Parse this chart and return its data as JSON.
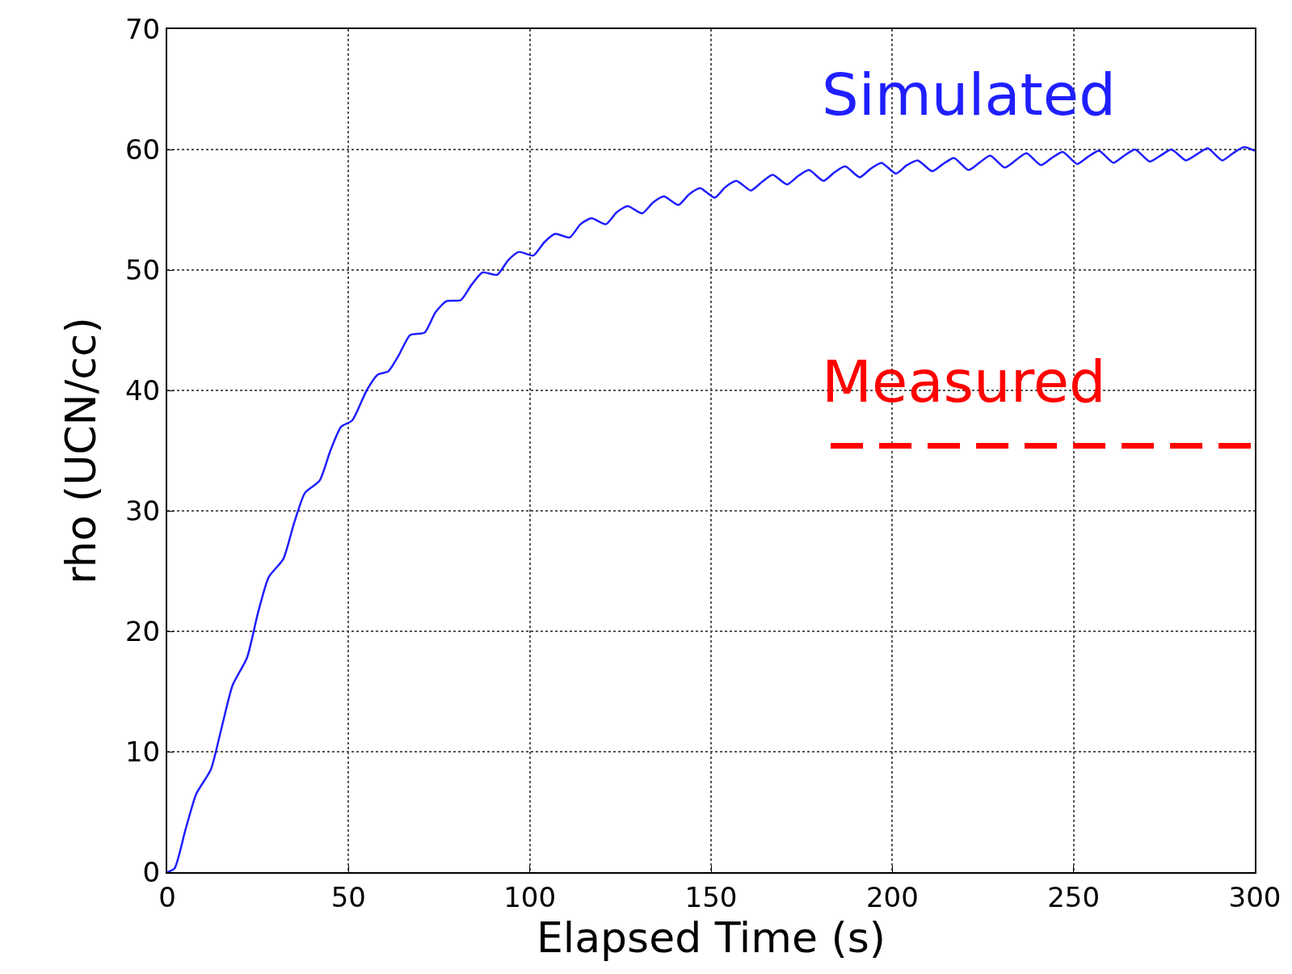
{
  "chart_data": {
    "type": "line",
    "xlabel": "Elapsed Time (s)",
    "ylabel": "rho (UCN/cc)",
    "xlim": [
      0,
      300
    ],
    "ylim": [
      0,
      70
    ],
    "xticks": [
      0,
      50,
      100,
      150,
      200,
      250,
      300
    ],
    "yticks": [
      0,
      10,
      20,
      30,
      40,
      50,
      60,
      70
    ],
    "grid": true,
    "legend": false,
    "series": [
      {
        "name": "Simulated",
        "color": "#1f1fff",
        "line_style": "solid",
        "x": [
          0,
          2,
          5,
          8,
          12,
          15,
          18,
          22,
          25,
          28,
          32,
          35,
          38,
          42,
          45,
          48,
          51,
          55,
          58,
          61,
          64,
          67,
          71,
          74,
          77,
          81,
          84,
          87,
          91,
          94,
          97,
          101,
          104,
          107,
          111,
          114,
          117,
          121,
          124,
          127,
          131,
          134,
          137,
          141,
          144,
          147,
          151,
          154,
          157,
          161,
          164,
          167,
          171,
          174,
          177,
          181,
          184,
          187,
          191,
          194,
          197,
          201,
          204,
          207,
          211,
          214,
          217,
          221,
          224,
          227,
          231,
          234,
          237,
          241,
          244,
          247,
          251,
          254,
          257,
          261,
          264,
          267,
          271,
          274,
          277,
          281,
          284,
          287,
          291,
          294,
          297,
          300
        ],
        "values": [
          0,
          0.3,
          3.5,
          6.5,
          8.5,
          12,
          15.5,
          17.8,
          21.5,
          24.5,
          26,
          29,
          31.5,
          32.5,
          35,
          37,
          37.5,
          40,
          41.3,
          41.6,
          43,
          44.6,
          44.8,
          46.5,
          47.4,
          47.5,
          48.8,
          49.8,
          49.6,
          50.8,
          51.5,
          51.2,
          52.3,
          53,
          52.7,
          53.8,
          54.3,
          53.8,
          54.8,
          55.3,
          54.7,
          55.6,
          56.1,
          55.4,
          56.3,
          56.8,
          56,
          56.9,
          57.4,
          56.6,
          57.3,
          57.9,
          57.1,
          57.8,
          58.3,
          57.4,
          58.1,
          58.6,
          57.7,
          58.4,
          58.9,
          58,
          58.7,
          59.1,
          58.2,
          58.8,
          59.3,
          58.3,
          58.9,
          59.5,
          58.5,
          59.1,
          59.7,
          58.7,
          59.3,
          59.8,
          58.8,
          59.4,
          59.9,
          58.9,
          59.5,
          60,
          59,
          59.5,
          60,
          59.1,
          59.6,
          60.1,
          59.1,
          59.7,
          60.2,
          59.9
        ]
      },
      {
        "name": "Measured",
        "color": "#ff0000",
        "line_style": "dashed",
        "x": [
          183,
          300
        ],
        "values": [
          35.4,
          35.4
        ]
      }
    ]
  }
}
